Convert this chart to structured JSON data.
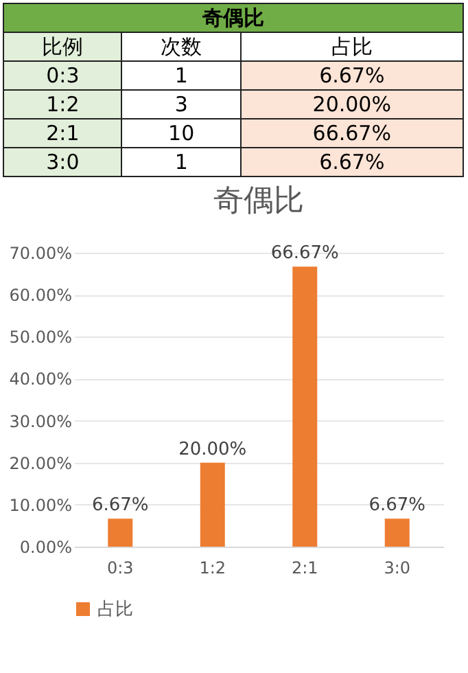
{
  "chart_data": [
    {
      "type": "other",
      "title": "奇偶比",
      "xlabel": "比例",
      "data_labels": true,
      "categories": [
        "0:3",
        "1:2",
        "2:1",
        "3:0"
      ],
      "series": [
        {
          "name": "次数",
          "values": [
            1,
            3,
            10,
            1
          ]
        },
        {
          "name": "占比",
          "color": "#fce4d6",
          "values": [
            6.67,
            20,
            66.67,
            6.67
          ],
          "value_labels": [
            "6.67%",
            "20.00%",
            "66.67%",
            "6.67%"
          ]
        }
      ]
    },
    {
      "type": "bar",
      "title": "奇偶比",
      "categories": [
        "0:3",
        "1:2",
        "2:1",
        "3:0"
      ],
      "series": [
        {
          "name": "占比",
          "color": "#ed7d31",
          "values": [
            6.67,
            20,
            66.67,
            6.67
          ],
          "value_labels": [
            "6.67%",
            "20.00%",
            "66.67%",
            "6.67%"
          ]
        }
      ],
      "ylim": [
        0,
        70
      ],
      "yticks": [
        {
          "value": 0,
          "label": "0.00%"
        },
        {
          "value": 10,
          "label": "10.00%"
        },
        {
          "value": 20,
          "label": "20.00%"
        },
        {
          "value": 30,
          "label": "30.00%"
        },
        {
          "value": 40,
          "label": "40.00%"
        },
        {
          "value": 50,
          "label": "50.00%"
        },
        {
          "value": 60,
          "label": "60.00%"
        },
        {
          "value": 70,
          "label": "70.00%"
        }
      ],
      "grid": "y",
      "legend": "bottom"
    }
  ]
}
